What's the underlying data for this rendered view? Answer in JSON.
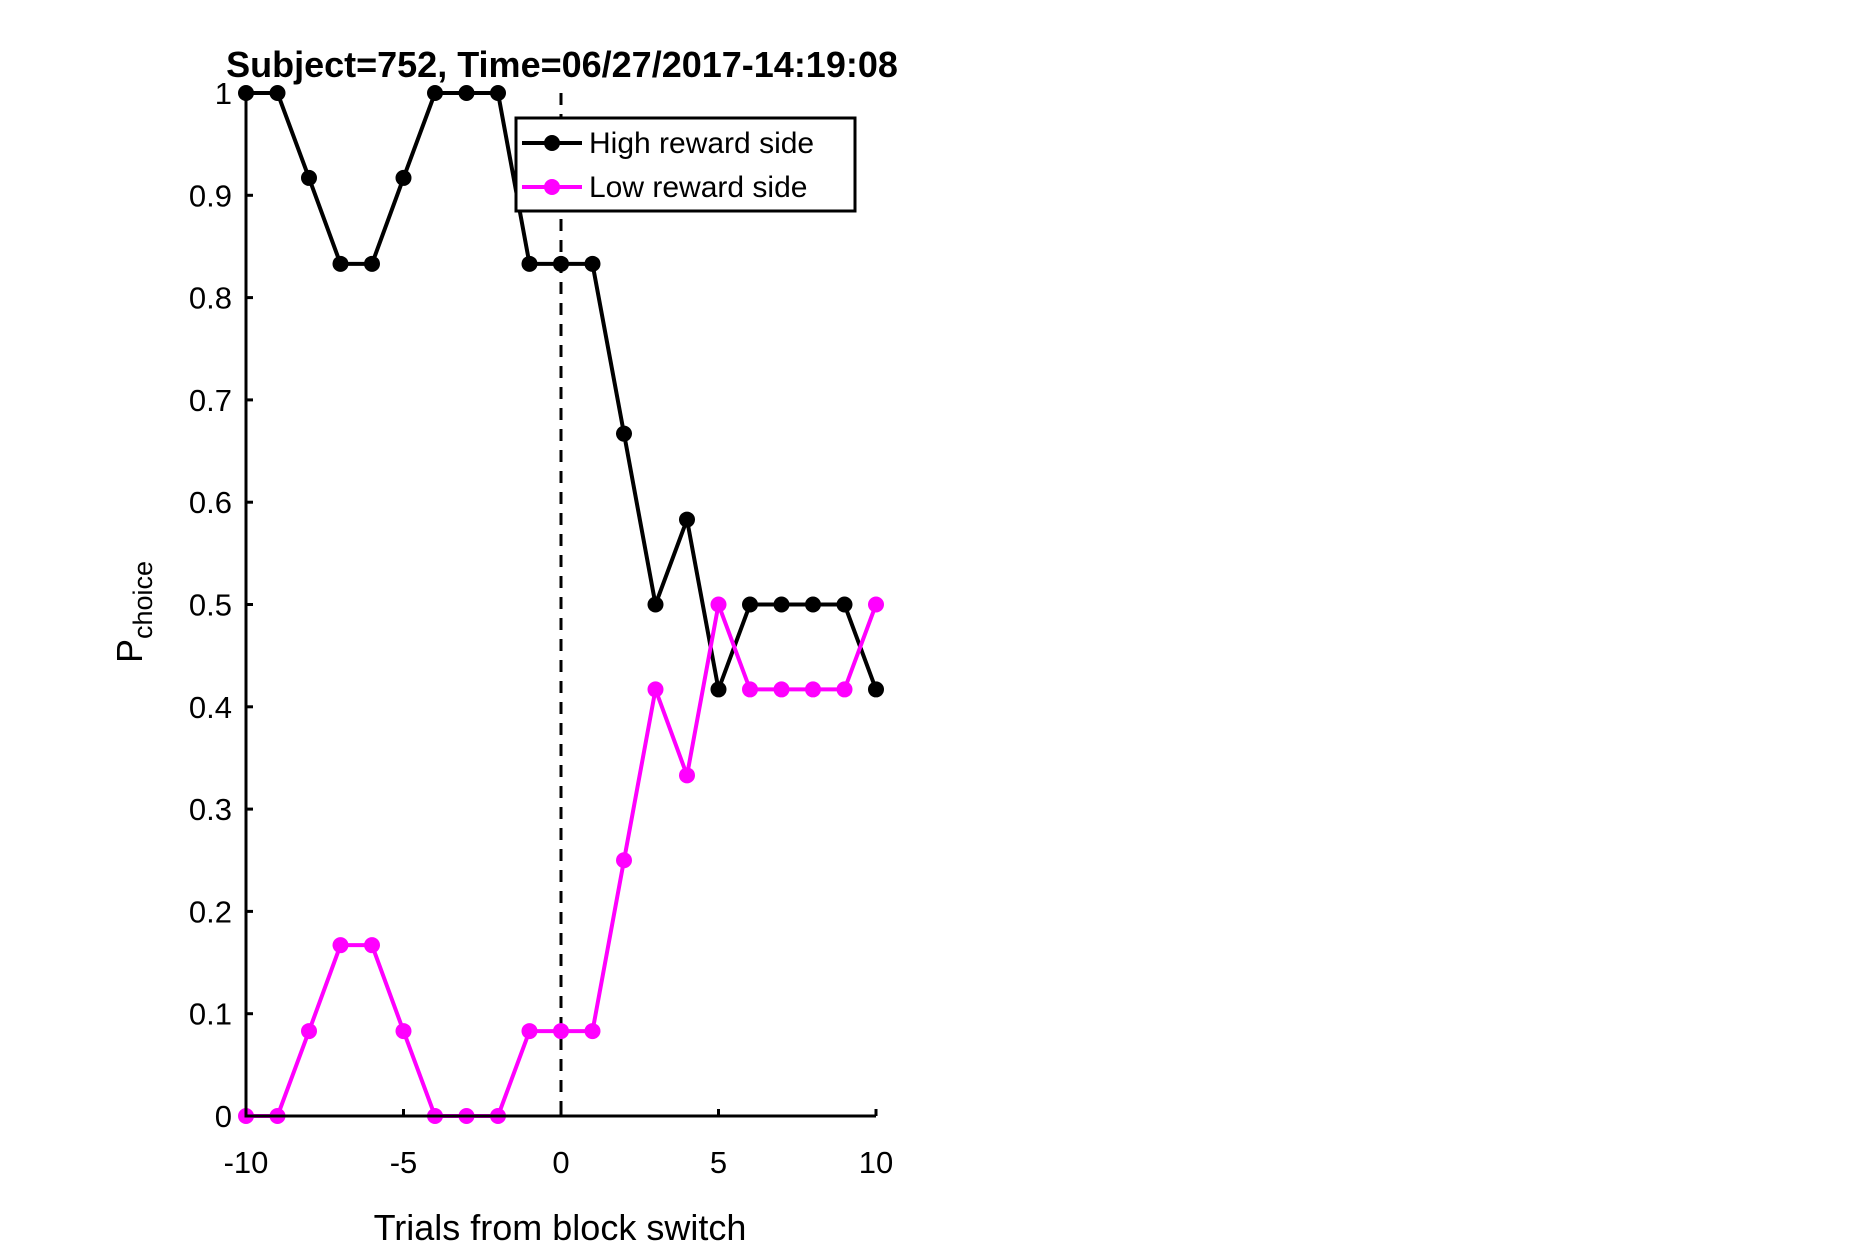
{
  "chart_data": {
    "type": "line",
    "title": "Subject=752, Time=06/27/2017-14:19:08",
    "xlabel": "Trials from block switch",
    "ylabel_main": "P",
    "ylabel_sub": "choice",
    "xlim": [
      -10,
      10
    ],
    "ylim": [
      0,
      1
    ],
    "x_ticks": [
      -10,
      -5,
      0,
      5,
      10
    ],
    "x_tick_labels": [
      "-10",
      "-5",
      "0",
      "5",
      "10"
    ],
    "y_ticks": [
      0,
      0.1,
      0.2,
      0.3,
      0.4,
      0.5,
      0.6,
      0.7,
      0.8,
      0.9,
      1
    ],
    "y_tick_labels": [
      "0",
      "0.1",
      "0.2",
      "0.3",
      "0.4",
      "0.5",
      "0.6",
      "0.7",
      "0.8",
      "0.9",
      "1"
    ],
    "vertical_reference_line": {
      "x": 0,
      "style": "dashed"
    },
    "grid": false,
    "legend_position": "top-right",
    "x": [
      -10,
      -9,
      -8,
      -7,
      -6,
      -5,
      -4,
      -3,
      -2,
      -1,
      0,
      1,
      2,
      3,
      4,
      5,
      6,
      7,
      8,
      9,
      10
    ],
    "series": [
      {
        "name": "High reward side",
        "color": "#000000",
        "values": [
          1,
          1,
          0.917,
          0.833,
          0.833,
          0.917,
          1,
          1,
          1,
          0.833,
          0.833,
          0.833,
          0.667,
          0.5,
          0.583,
          0.417,
          0.5,
          0.5,
          0.5,
          0.5,
          0.417
        ]
      },
      {
        "name": "Low reward side",
        "color": "#ff00ff",
        "values": [
          0,
          0,
          0.083,
          0.167,
          0.167,
          0.083,
          0,
          0,
          0,
          0.083,
          0.083,
          0.083,
          0.25,
          0.417,
          0.333,
          0.5,
          0.417,
          0.417,
          0.417,
          0.417,
          0.5
        ]
      }
    ]
  }
}
